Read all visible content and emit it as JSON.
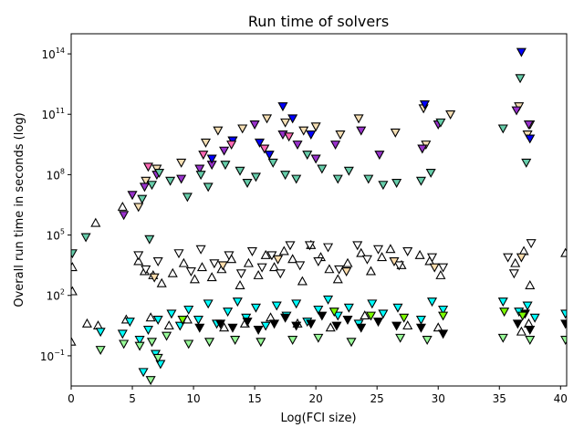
{
  "chart_data": {
    "type": "scatter",
    "title": "Run time of solvers",
    "xlabel": "Log(FCI size)",
    "ylabel": "Overall run time in seconds (log)",
    "xlim": [
      0,
      40.5
    ],
    "ylim_exponent": [
      -2.5,
      15
    ],
    "y_scale": "log",
    "grid": false,
    "legend": "none",
    "x_ticks": [
      {
        "value": 0,
        "label": "0"
      },
      {
        "value": 5,
        "label": "5"
      },
      {
        "value": 10,
        "label": "10"
      },
      {
        "value": 15,
        "label": "15"
      },
      {
        "value": 20,
        "label": "20"
      },
      {
        "value": 25,
        "label": "25"
      },
      {
        "value": 30,
        "label": "30"
      },
      {
        "value": 35,
        "label": "35"
      },
      {
        "value": 40,
        "label": "40"
      }
    ],
    "y_ticks": [
      {
        "exp": -1,
        "base": "10",
        "sup": "−1"
      },
      {
        "exp": 2,
        "base": "10",
        "sup": "2"
      },
      {
        "exp": 5,
        "base": "10",
        "sup": "5"
      },
      {
        "exp": 8,
        "base": "10",
        "sup": "8"
      },
      {
        "exp": 11,
        "base": "10",
        "sup": "11"
      },
      {
        "exp": 14,
        "base": "10",
        "sup": "14"
      }
    ],
    "series": [
      {
        "marker": "down",
        "color": "#f5deb3",
        "points": [
          [
            7,
            8.3
          ],
          [
            9,
            8.6
          ],
          [
            11,
            9.6
          ],
          [
            12,
            10.2
          ],
          [
            14,
            10.3
          ],
          [
            16,
            10.8
          ],
          [
            17.5,
            10.6
          ],
          [
            19,
            10.2
          ],
          [
            20,
            10.4
          ],
          [
            22,
            10.0
          ],
          [
            23.5,
            10.8
          ],
          [
            28.8,
            11.3
          ],
          [
            31,
            11.0
          ],
          [
            36.6,
            11.4
          ],
          [
            37.3,
            10.0
          ],
          [
            37.5,
            10.5
          ],
          [
            29,
            9.5
          ],
          [
            26.5,
            10.1
          ],
          [
            5.5,
            6.4
          ],
          [
            6.1,
            7.7
          ]
        ]
      },
      {
        "marker": "down",
        "color": "#9932cc",
        "points": [
          [
            4.3,
            6.0
          ],
          [
            5,
            7.0
          ],
          [
            6,
            7.4
          ],
          [
            7,
            8.0
          ],
          [
            9,
            7.8
          ],
          [
            10.5,
            8.3
          ],
          [
            11.5,
            8.5
          ],
          [
            12.5,
            9.2
          ],
          [
            13.2,
            9.7
          ],
          [
            15,
            10.5
          ],
          [
            17.3,
            10.0
          ],
          [
            18.5,
            9.5
          ],
          [
            20,
            8.8
          ],
          [
            21.6,
            9.5
          ],
          [
            23.7,
            10.2
          ],
          [
            25.2,
            9.0
          ],
          [
            28.7,
            9.3
          ],
          [
            30,
            10.5
          ],
          [
            36.4,
            11.2
          ],
          [
            37.4,
            10.5
          ]
        ]
      },
      {
        "marker": "down",
        "color": "#0000ff",
        "points": [
          [
            11.5,
            8.8
          ],
          [
            13.2,
            9.7
          ],
          [
            15.4,
            9.6
          ],
          [
            17.3,
            11.4
          ],
          [
            18.1,
            10.8
          ],
          [
            19.6,
            10.0
          ],
          [
            36.8,
            14.1
          ],
          [
            37.5,
            9.8
          ],
          [
            28.9,
            11.5
          ],
          [
            16.2,
            9.0
          ]
        ]
      },
      {
        "marker": "down",
        "color": "#66cdaa",
        "points": [
          [
            5.8,
            6.8
          ],
          [
            6.6,
            7.5
          ],
          [
            7.2,
            8.1
          ],
          [
            8.1,
            7.7
          ],
          [
            9.5,
            6.9
          ],
          [
            10.6,
            8.0
          ],
          [
            11.2,
            7.4
          ],
          [
            12.6,
            8.5
          ],
          [
            13.8,
            8.2
          ],
          [
            14.4,
            7.6
          ],
          [
            15.1,
            7.9
          ],
          [
            16.5,
            8.6
          ],
          [
            17.5,
            8.0
          ],
          [
            18.4,
            7.8
          ],
          [
            19.3,
            9.0
          ],
          [
            20.5,
            8.3
          ],
          [
            21.8,
            7.8
          ],
          [
            22.7,
            8.2
          ],
          [
            24.3,
            7.8
          ],
          [
            25.5,
            7.5
          ],
          [
            26.6,
            7.6
          ],
          [
            28.6,
            7.7
          ],
          [
            29.4,
            8.1
          ],
          [
            30.2,
            10.6
          ],
          [
            35.3,
            10.3
          ],
          [
            36.7,
            12.8
          ],
          [
            37.2,
            8.6
          ],
          [
            6.4,
            4.8
          ],
          [
            1.2,
            4.9
          ],
          [
            0.1,
            4.1
          ]
        ]
      },
      {
        "marker": "down",
        "color": "#ff69b4",
        "points": [
          [
            6.3,
            8.4
          ],
          [
            10.8,
            9.0
          ],
          [
            13.1,
            9.5
          ],
          [
            15.8,
            9.3
          ],
          [
            17.8,
            9.9
          ]
        ]
      },
      {
        "marker": "up",
        "color": "#ffffff",
        "points": [
          [
            0.1,
            3.4
          ],
          [
            2,
            5.6
          ],
          [
            4.2,
            6.4
          ],
          [
            5.5,
            3.7
          ],
          [
            6,
            3.2
          ],
          [
            6.7,
            3.0
          ],
          [
            7.4,
            2.6
          ],
          [
            8.3,
            3.1
          ],
          [
            9.2,
            3.6
          ],
          [
            10.1,
            2.8
          ],
          [
            10.7,
            3.4
          ],
          [
            11.5,
            2.9
          ],
          [
            12.3,
            3.3
          ],
          [
            13.1,
            3.8
          ],
          [
            13.8,
            2.5
          ],
          [
            14.5,
            3.6
          ],
          [
            15.3,
            3.0
          ],
          [
            15.9,
            4.0
          ],
          [
            16.6,
            3.4
          ],
          [
            17.4,
            4.2
          ],
          [
            18.1,
            3.8
          ],
          [
            18.9,
            2.7
          ],
          [
            19.6,
            4.5
          ],
          [
            20.4,
            3.9
          ],
          [
            21.1,
            3.3
          ],
          [
            21.8,
            2.8
          ],
          [
            22.6,
            3.6
          ],
          [
            23.7,
            4.1
          ],
          [
            24.5,
            3.2
          ],
          [
            25.4,
            3.9
          ],
          [
            26.1,
            4.3
          ],
          [
            27.0,
            3.5
          ],
          [
            28.5,
            4.0
          ],
          [
            29.3,
            3.7
          ],
          [
            30.2,
            3.0
          ],
          [
            36.3,
            3.6
          ],
          [
            37.0,
            4.2
          ],
          [
            37.5,
            2.5
          ],
          [
            40.4,
            4.1
          ],
          [
            0.1,
            2.2
          ],
          [
            0,
            -0.3
          ],
          [
            1.3,
            0.6
          ],
          [
            2.2,
            0.5
          ],
          [
            4.5,
            0.8
          ],
          [
            6.5,
            0.9
          ],
          [
            8,
            0.5
          ],
          [
            9.5,
            0.8
          ],
          [
            12.5,
            0.4
          ],
          [
            14.2,
            0.6
          ],
          [
            16.3,
            0.9
          ],
          [
            18.5,
            0.6
          ],
          [
            21.2,
            0.4
          ],
          [
            24,
            1.0
          ],
          [
            27.5,
            0.5
          ],
          [
            30,
            0.4
          ],
          [
            36.8,
            0.2
          ],
          [
            37.4,
            0.6
          ]
        ]
      },
      {
        "marker": "down",
        "color": "#ffffff",
        "points": [
          [
            5.5,
            4.0
          ],
          [
            6.1,
            3.3
          ],
          [
            7.1,
            3.7
          ],
          [
            8.8,
            4.1
          ],
          [
            9.8,
            3.2
          ],
          [
            10.6,
            4.3
          ],
          [
            11.7,
            3.6
          ],
          [
            12.9,
            4.0
          ],
          [
            13.9,
            3.1
          ],
          [
            14.8,
            4.2
          ],
          [
            15.6,
            3.4
          ],
          [
            16.4,
            4.0
          ],
          [
            17.1,
            3.1
          ],
          [
            17.9,
            4.5
          ],
          [
            18.7,
            3.5
          ],
          [
            19.5,
            4.5
          ],
          [
            20.2,
            3.7
          ],
          [
            21.0,
            4.4
          ],
          [
            21.9,
            3.3
          ],
          [
            23.4,
            4.5
          ],
          [
            24.2,
            3.8
          ],
          [
            25.1,
            4.3
          ],
          [
            26.8,
            3.5
          ],
          [
            27.5,
            4.2
          ],
          [
            29.5,
            3.9
          ],
          [
            30.4,
            3.4
          ],
          [
            35.7,
            3.9
          ],
          [
            37.6,
            4.6
          ],
          [
            36.2,
            3.1
          ]
        ]
      },
      {
        "marker": "down",
        "color": "#00ffff",
        "points": [
          [
            2.4,
            0.2
          ],
          [
            4.2,
            0.1
          ],
          [
            4.8,
            0.7
          ],
          [
            5.6,
            -0.2
          ],
          [
            6.3,
            0.3
          ],
          [
            7.1,
            0.8
          ],
          [
            8.2,
            1.1
          ],
          [
            8.9,
            0.5
          ],
          [
            9.6,
            1.3
          ],
          [
            10.4,
            0.8
          ],
          [
            11.2,
            1.6
          ],
          [
            11.9,
            0.6
          ],
          [
            12.8,
            1.2
          ],
          [
            13.6,
            1.7
          ],
          [
            14.3,
            0.9
          ],
          [
            15.1,
            1.4
          ],
          [
            15.9,
            0.5
          ],
          [
            16.8,
            1.5
          ],
          [
            17.6,
            1.0
          ],
          [
            18.4,
            1.6
          ],
          [
            19.3,
            0.7
          ],
          [
            20.2,
            1.3
          ],
          [
            21.0,
            1.8
          ],
          [
            21.8,
            1.0
          ],
          [
            22.7,
            1.4
          ],
          [
            23.5,
            0.6
          ],
          [
            24.6,
            1.6
          ],
          [
            25.5,
            1.1
          ],
          [
            26.7,
            1.4
          ],
          [
            28.6,
            0.8
          ],
          [
            29.5,
            1.7
          ],
          [
            30.4,
            1.3
          ],
          [
            35.3,
            1.7
          ],
          [
            36.6,
            1.2
          ],
          [
            37.3,
            1.5
          ],
          [
            37.9,
            0.9
          ],
          [
            40.4,
            1.1
          ],
          [
            6.9,
            -0.9
          ],
          [
            5.9,
            -1.8
          ],
          [
            7.3,
            -1.4
          ]
        ]
      },
      {
        "marker": "down",
        "color": "#98fb98",
        "points": [
          [
            4.3,
            -0.4
          ],
          [
            5.6,
            -0.5
          ],
          [
            6.6,
            -0.3
          ],
          [
            7.8,
            0
          ],
          [
            9.6,
            -0.4
          ],
          [
            11.3,
            -0.3
          ],
          [
            13.4,
            -0.2
          ],
          [
            15.5,
            -0.3
          ],
          [
            18.1,
            -0.2
          ],
          [
            20.2,
            -0.1
          ],
          [
            22.9,
            -0.3
          ],
          [
            26.9,
            -0.1
          ],
          [
            29.1,
            -0.2
          ],
          [
            35.3,
            -0.1
          ],
          [
            37.5,
            -0.2
          ],
          [
            40.4,
            -0.2
          ],
          [
            2.4,
            -0.7
          ],
          [
            6.5,
            -2.2
          ],
          [
            7.1,
            -1.1
          ]
        ]
      },
      {
        "marker": "down",
        "color": "#000000",
        "points": [
          [
            10.5,
            0.4
          ],
          [
            12.2,
            0.6
          ],
          [
            13.2,
            0.4
          ],
          [
            14.4,
            0.7
          ],
          [
            15.3,
            0.3
          ],
          [
            16.6,
            0.6
          ],
          [
            17.5,
            0.9
          ],
          [
            18.4,
            0.5
          ],
          [
            19.6,
            0.6
          ],
          [
            20.5,
            1.0
          ],
          [
            21.7,
            0.5
          ],
          [
            22.6,
            0.8
          ],
          [
            23.7,
            0.4
          ],
          [
            25.1,
            0.7
          ],
          [
            26.6,
            0.5
          ],
          [
            28.6,
            0.4
          ],
          [
            30.4,
            0.1
          ],
          [
            36.5,
            0.6
          ],
          [
            37.1,
            1.1
          ],
          [
            37.5,
            0.3
          ],
          [
            40.4,
            0.6
          ]
        ]
      },
      {
        "marker": "down",
        "color": "#7cfc00",
        "points": [
          [
            9.1,
            0.8
          ],
          [
            21.5,
            1.2
          ],
          [
            24.5,
            1.0
          ],
          [
            27.2,
            0.9
          ],
          [
            30.4,
            1.0
          ],
          [
            35.4,
            1.2
          ],
          [
            36.9,
            1.0
          ]
        ]
      },
      {
        "marker": "down",
        "color": "#ffdead",
        "points": [
          [
            6.8,
            2.9
          ],
          [
            12.4,
            3.5
          ],
          [
            16.9,
            3.8
          ],
          [
            22.5,
            3.2
          ],
          [
            26.4,
            3.7
          ],
          [
            29.7,
            3.4
          ],
          [
            36.8,
            3.9
          ]
        ]
      }
    ]
  }
}
